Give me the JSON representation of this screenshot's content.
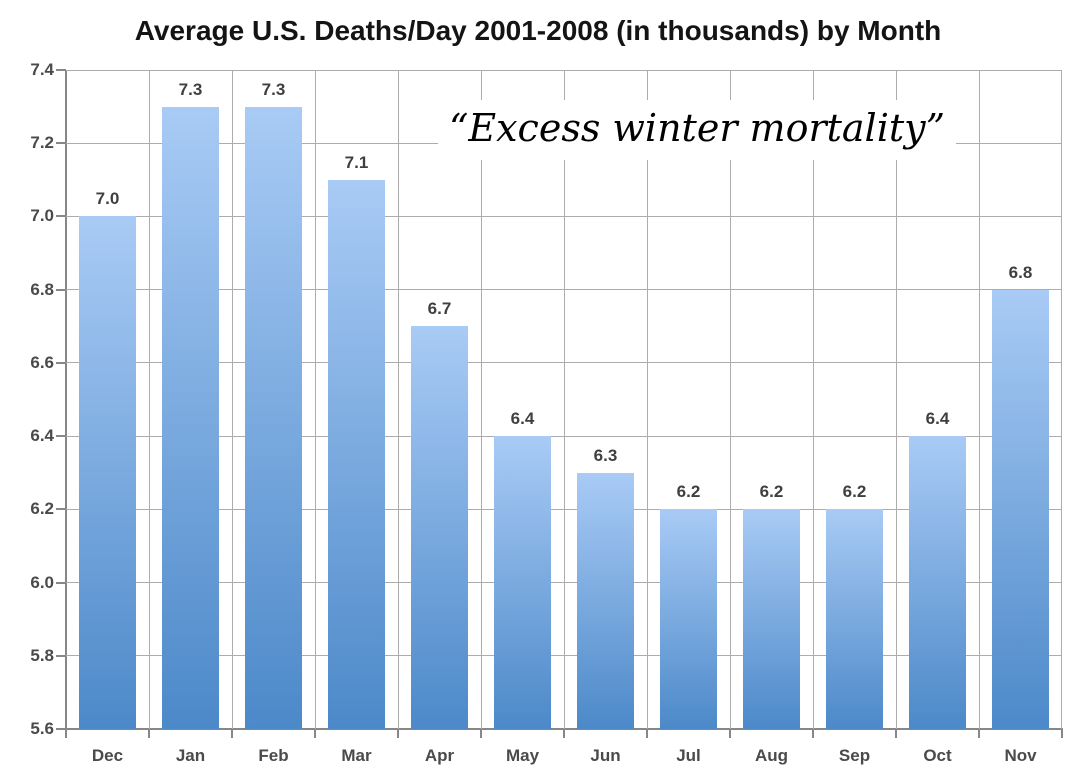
{
  "chart_data": {
    "type": "bar",
    "title": "Average U.S. Deaths/Day 2001-2008 (in thousands) by Month",
    "annotation": "“Excess winter mortality”",
    "categories": [
      "Dec",
      "Jan",
      "Feb",
      "Mar",
      "Apr",
      "May",
      "Jun",
      "Jul",
      "Aug",
      "Sep",
      "Oct",
      "Nov"
    ],
    "values": [
      7.0,
      7.3,
      7.3,
      7.1,
      6.7,
      6.4,
      6.3,
      6.2,
      6.2,
      6.2,
      6.4,
      6.8
    ],
    "labels": [
      "7.0",
      "7.3",
      "7.3",
      "7.1",
      "6.7",
      "6.4",
      "6.3",
      "6.2",
      "6.2",
      "6.2",
      "6.4",
      "6.8"
    ],
    "xlabel": "",
    "ylabel": "",
    "ylim": [
      5.6,
      7.4
    ],
    "ytick_step": 0.2,
    "yticks": [
      "5.6",
      "5.8",
      "6.0",
      "6.2",
      "6.4",
      "6.6",
      "6.8",
      "7.0",
      "7.2",
      "7.4"
    ],
    "grid": true,
    "legend": false,
    "bar_gradient_top": "#A9CBF5",
    "bar_gradient_bottom": "#4C89C9",
    "gridline_color": "#acacac",
    "axis_color": "#878787",
    "label_color": "#3f3f3f"
  }
}
